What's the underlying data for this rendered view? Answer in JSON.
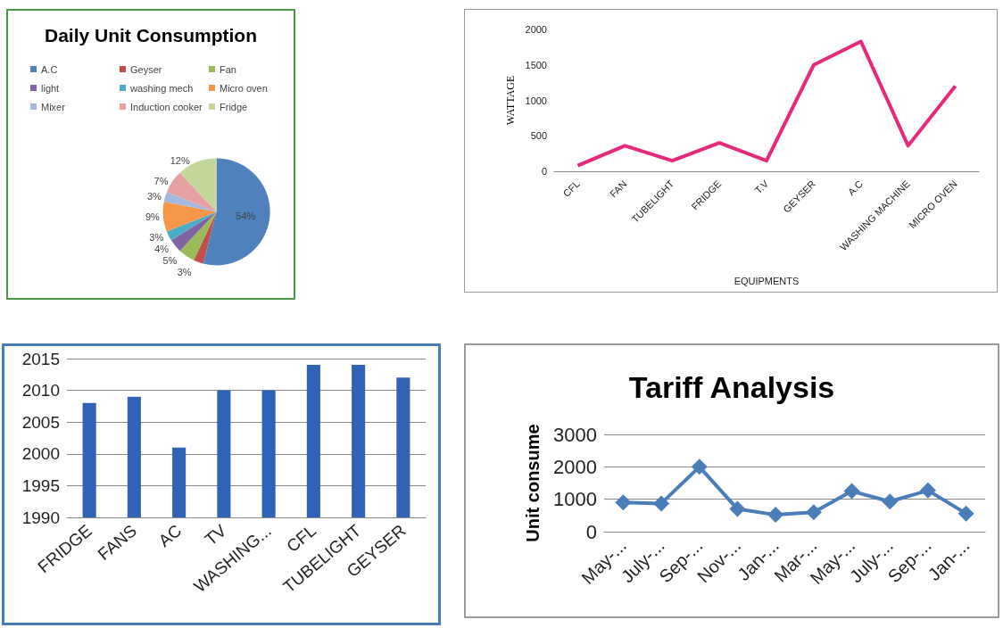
{
  "chart_data": [
    {
      "type": "pie",
      "title": "Daily Unit Consumption",
      "categories": [
        "A.C",
        "Geyser",
        "Fan",
        "light",
        "washing mech",
        "Micro oven",
        "Mixer",
        "Induction cooker",
        "Fridge"
      ],
      "values": [
        54,
        3,
        5,
        4,
        3,
        9,
        3,
        7,
        12
      ],
      "colors": [
        "#4f81bd",
        "#c0504d",
        "#9bbb59",
        "#8064a2",
        "#4bacc6",
        "#f79646",
        "#a5b8e0",
        "#e6a0a0",
        "#c3d69b"
      ],
      "value_labels": [
        "54%",
        "3%",
        "5%",
        "4%",
        "3%",
        "9%",
        "3%",
        "7%",
        "12%"
      ],
      "legend": "top"
    },
    {
      "type": "line",
      "categories": [
        "CFL",
        "FAN",
        "TUBELIGHT",
        "FRIDGE",
        "T.V",
        "GEYSER",
        "A.C",
        "WASHING MACHINE",
        "MICRO OVEN"
      ],
      "values": [
        80,
        360,
        150,
        400,
        150,
        1500,
        1830,
        360,
        1200
      ],
      "color": "#e8287a",
      "xlabel": "EQUIPMENTS",
      "ylabel": "WATTAGE",
      "ylim": [
        0,
        2000
      ],
      "yticks": [
        0,
        500,
        1000,
        1500,
        2000
      ],
      "marker": "none",
      "grid": false
    },
    {
      "type": "bar",
      "categories": [
        "FRIDGE",
        "FANS",
        "AC",
        "TV",
        "WASHING...",
        "CFL",
        "TUBELIGHT",
        "GEYSER"
      ],
      "values": [
        2008,
        2009,
        2001,
        2010,
        2010,
        2014,
        2014,
        2012
      ],
      "color": "#2e63b8",
      "ylim": [
        1990,
        2015
      ],
      "yticks": [
        1990,
        1995,
        2000,
        2005,
        2010,
        2015
      ],
      "grid": "y"
    },
    {
      "type": "line",
      "title": "Tariff Analysis",
      "categories": [
        "May-...",
        "July-...",
        "Sep-...",
        "Nov-...",
        "Jan-...",
        "Mar-...",
        "May-...",
        "July-...",
        "Sep-...",
        "Jan-..."
      ],
      "values": [
        900,
        870,
        2000,
        700,
        520,
        600,
        1250,
        930,
        1270,
        560
      ],
      "color": "#4a7ebb",
      "ylabel": "Unit consume",
      "ylim": [
        0,
        3000
      ],
      "yticks": [
        0,
        1000,
        2000,
        3000
      ],
      "marker": "diamond",
      "grid": "y"
    }
  ]
}
